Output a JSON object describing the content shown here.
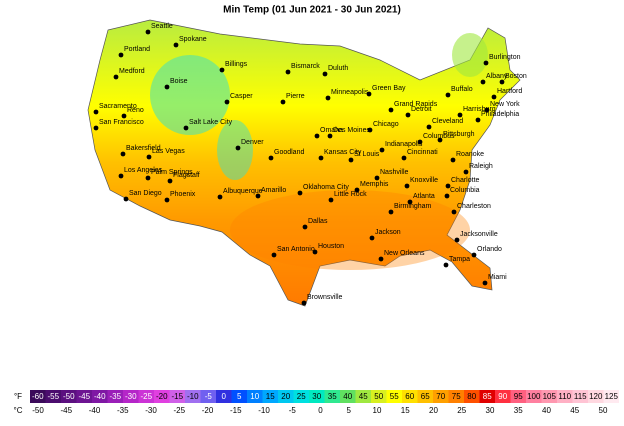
{
  "title": "Min Temp (01 Jun 2021 - 30 Jun 2021)",
  "cities": [
    "Seattle",
    "Spokane",
    "Portland",
    "Medford",
    "Boise",
    "Billings",
    "Bismarck",
    "Duluth",
    "Burlington",
    "Boston",
    "Albany",
    "Hartford",
    "New York",
    "Philadelphia",
    "Harrisburg",
    "Buffalo",
    "Detroit",
    "Grand Rapids",
    "Green Bay",
    "Minneapolis",
    "Pierre",
    "Casper",
    "Sacramento",
    "Reno",
    "San Francisco",
    "Salt Lake City",
    "Denver",
    "Omaha",
    "Des Moines",
    "Chicago",
    "Cleveland",
    "Pittsburgh",
    "Columbus",
    "Indianapolis",
    "Cincinnati",
    "Bakersfield",
    "Las Vegas",
    "Los Angeles",
    "Palm Springs",
    "Flagstaff",
    "Goodland",
    "Kansas City",
    "St Louis",
    "Nashville",
    "Knoxville",
    "Roanoke",
    "Raleigh",
    "Charlotte",
    "Columbia",
    "Charleston",
    "San Diego",
    "Phoenix",
    "Albuquerque",
    "Amarillo",
    "Oklahoma City",
    "Memphis",
    "Little Rock",
    "Birmingham",
    "Atlanta",
    "Dallas",
    "Jackson",
    "Jacksonville",
    "Orlando",
    "Tampa",
    "Miami",
    "San Antonio",
    "Houston",
    "New Orleans",
    "Brownsville"
  ],
  "legend": {
    "f_unit": "°F",
    "c_unit": "°C",
    "f_values": [
      -60,
      -55,
      -50,
      -45,
      -40,
      -35,
      -30,
      -25,
      -20,
      -15,
      -10,
      -5,
      0,
      5,
      10,
      15,
      20,
      25,
      30,
      35,
      40,
      45,
      50,
      55,
      60,
      65,
      70,
      75,
      80,
      85,
      90,
      95,
      100,
      105,
      110,
      115,
      120,
      125
    ],
    "colors": [
      "#3b0a5a",
      "#4b0d6e",
      "#5c1080",
      "#6d1492",
      "#7f18a4",
      "#9a1fb8",
      "#b526c8",
      "#cc33d6",
      "#e040e0",
      "#d060e8",
      "#a070f0",
      "#7060f0",
      "#3030e0",
      "#0050ff",
      "#0080ff",
      "#00a8ff",
      "#00c8f0",
      "#00e0e0",
      "#00e8c0",
      "#30e890",
      "#60e060",
      "#a0e840",
      "#d8f020",
      "#ffff00",
      "#ffe000",
      "#ffc000",
      "#ffa000",
      "#ff8000",
      "#ff5000",
      "#e00000",
      "#ff3040",
      "#ff6080",
      "#ff80a0",
      "#ff98b0",
      "#ffb0c4",
      "#ffc4d4",
      "#ffd8e0",
      "#ffeaf0"
    ],
    "c_values": [
      -50,
      -45,
      -40,
      -35,
      -30,
      -25,
      -20,
      -15,
      -10,
      -5,
      0,
      5,
      10,
      15,
      20,
      25,
      30,
      35,
      40,
      45,
      50
    ]
  }
}
